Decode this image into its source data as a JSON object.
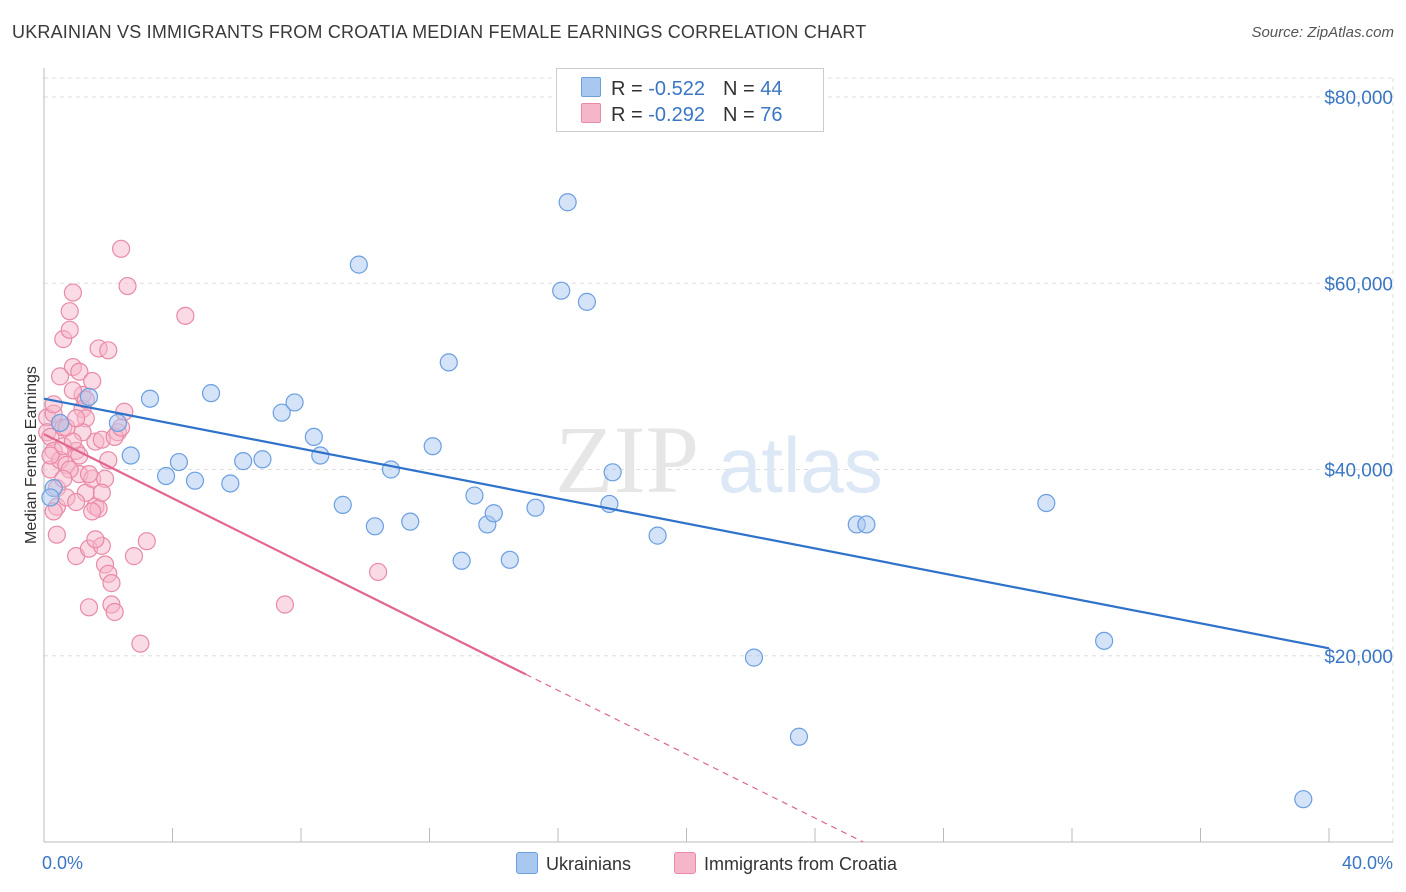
{
  "title": "UKRAINIAN VS IMMIGRANTS FROM CROATIA MEDIAN FEMALE EARNINGS CORRELATION CHART",
  "source": "Source: ZipAtlas.com",
  "watermark": {
    "zip": "ZIP",
    "atlas": "atlas"
  },
  "legend_top": {
    "rows": [
      {
        "r_label": "R = ",
        "r_value": "-0.522",
        "n_label": "N = ",
        "n_value": "44"
      },
      {
        "r_label": "R = ",
        "r_value": "-0.292",
        "n_label": "N = ",
        "n_value": "76"
      }
    ]
  },
  "legend_bottom": {
    "series1": "Ukrainians",
    "series2": "Immigrants from Croatia"
  },
  "colors": {
    "blue_fill": "#a9c8ef",
    "blue_stroke": "#6a9fe0",
    "blue_line": "#2f72c9",
    "pink_fill": "#f5b6c9",
    "pink_stroke": "#e98aa6",
    "pink_line": "#e0678f",
    "grid": "#dddddd",
    "label_blue": "#3a76c4"
  },
  "chart_data": {
    "type": "scatter",
    "title": "UKRAINIAN VS IMMIGRANTS FROM CROATIA MEDIAN FEMALE EARNINGS CORRELATION CHART",
    "xlabel": "",
    "ylabel": "Median Female Earnings",
    "xlim": [
      0,
      40
    ],
    "ylim": [
      0,
      80000
    ],
    "x_tick_labels": [
      "0.0%",
      "40.0%"
    ],
    "y_tick_labels": [
      "$20,000",
      "$40,000",
      "$60,000",
      "$80,000"
    ],
    "y_ticks": [
      20000,
      40000,
      60000,
      80000
    ],
    "grid": true,
    "legend": "top-center",
    "series": [
      {
        "name": "Ukrainians",
        "r": -0.522,
        "n": 44,
        "points": [
          [
            0.3,
            38000
          ],
          [
            0.5,
            45000
          ],
          [
            1.4,
            47800
          ],
          [
            2.3,
            45000
          ],
          [
            2.7,
            41500
          ],
          [
            3.3,
            47600
          ],
          [
            3.8,
            39300
          ],
          [
            4.2,
            40800
          ],
          [
            4.7,
            38800
          ],
          [
            5.2,
            48200
          ],
          [
            5.8,
            38500
          ],
          [
            6.2,
            40900
          ],
          [
            6.8,
            41100
          ],
          [
            7.4,
            46100
          ],
          [
            7.8,
            47200
          ],
          [
            8.4,
            43500
          ],
          [
            8.6,
            41500
          ],
          [
            9.3,
            36200
          ],
          [
            9.8,
            62000
          ],
          [
            10.3,
            33900
          ],
          [
            10.8,
            40000
          ],
          [
            11.4,
            34400
          ],
          [
            12.1,
            42500
          ],
          [
            12.6,
            51500
          ],
          [
            13.0,
            30200
          ],
          [
            13.4,
            37200
          ],
          [
            13.8,
            34100
          ],
          [
            14.0,
            35300
          ],
          [
            14.5,
            30300
          ],
          [
            15.3,
            35900
          ],
          [
            16.1,
            59200
          ],
          [
            16.3,
            68700
          ],
          [
            16.9,
            58000
          ],
          [
            17.6,
            36300
          ],
          [
            17.7,
            39700
          ],
          [
            19.1,
            32900
          ],
          [
            22.1,
            19800
          ],
          [
            23.5,
            11300
          ],
          [
            25.3,
            34100
          ],
          [
            25.6,
            34100
          ],
          [
            31.2,
            36400
          ],
          [
            33.0,
            21600
          ],
          [
            39.2,
            4600
          ],
          [
            0.2,
            37000
          ]
        ],
        "trend": {
          "x0": 0,
          "y0": 47600,
          "x1": 40,
          "y1": 20800
        }
      },
      {
        "name": "Immigrants from Croatia",
        "r": -0.292,
        "n": 76,
        "points": [
          [
            0.1,
            45600
          ],
          [
            0.1,
            44000
          ],
          [
            0.2,
            43500
          ],
          [
            0.2,
            40000
          ],
          [
            0.3,
            42000
          ],
          [
            0.3,
            46000
          ],
          [
            0.4,
            38000
          ],
          [
            0.4,
            36000
          ],
          [
            0.5,
            45000
          ],
          [
            0.5,
            41000
          ],
          [
            0.6,
            54000
          ],
          [
            0.6,
            44500
          ],
          [
            0.7,
            37000
          ],
          [
            0.7,
            40500
          ],
          [
            0.8,
            57000
          ],
          [
            0.8,
            55000
          ],
          [
            0.9,
            59000
          ],
          [
            0.9,
            51000
          ],
          [
            1.0,
            42000
          ],
          [
            1.0,
            30700
          ],
          [
            1.1,
            50500
          ],
          [
            1.1,
            39500
          ],
          [
            1.2,
            48000
          ],
          [
            1.2,
            46500
          ],
          [
            1.3,
            45500
          ],
          [
            1.3,
            37500
          ],
          [
            1.4,
            31500
          ],
          [
            1.4,
            25200
          ],
          [
            1.5,
            49500
          ],
          [
            1.5,
            39000
          ],
          [
            1.6,
            43000
          ],
          [
            1.6,
            36000
          ],
          [
            1.7,
            35800
          ],
          [
            1.7,
            53000
          ],
          [
            1.8,
            31800
          ],
          [
            1.8,
            43200
          ],
          [
            1.9,
            29800
          ],
          [
            2.0,
            52800
          ],
          [
            2.0,
            28800
          ],
          [
            2.1,
            25500
          ],
          [
            2.1,
            27800
          ],
          [
            2.2,
            24700
          ],
          [
            2.3,
            44000
          ],
          [
            2.4,
            63700
          ],
          [
            2.5,
            46200
          ],
          [
            2.6,
            59700
          ],
          [
            2.8,
            30700
          ],
          [
            3.2,
            32300
          ],
          [
            3.0,
            21300
          ],
          [
            4.4,
            56500
          ],
          [
            7.5,
            25500
          ],
          [
            10.4,
            29000
          ],
          [
            0.3,
            47000
          ],
          [
            0.5,
            50000
          ],
          [
            0.6,
            42500
          ],
          [
            0.8,
            40000
          ],
          [
            1.0,
            36500
          ],
          [
            1.2,
            44000
          ],
          [
            1.5,
            35500
          ],
          [
            1.9,
            39000
          ],
          [
            2.2,
            43500
          ],
          [
            0.4,
            33000
          ],
          [
            0.9,
            48500
          ],
          [
            1.1,
            41500
          ],
          [
            1.3,
            47500
          ],
          [
            1.6,
            32500
          ],
          [
            2.0,
            41000
          ],
          [
            2.4,
            44500
          ],
          [
            0.2,
            41500
          ],
          [
            0.7,
            44500
          ],
          [
            1.8,
            37500
          ],
          [
            0.3,
            35500
          ],
          [
            1.4,
            39500
          ],
          [
            0.6,
            39000
          ],
          [
            1.0,
            45500
          ],
          [
            0.9,
            43000
          ]
        ],
        "trend": {
          "x0": 0,
          "y0": 43800,
          "x1": 15,
          "y1": 18000
        },
        "trend_extension": {
          "x0": 15,
          "y0": 18000,
          "x1": 25.5,
          "y1": 0
        }
      }
    ]
  }
}
